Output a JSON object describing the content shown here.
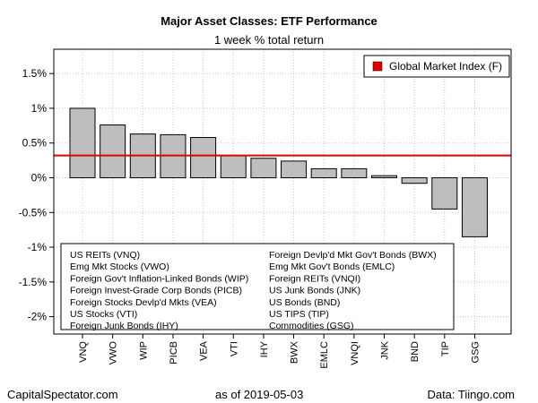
{
  "chart_data": {
    "type": "bar",
    "title": "Major Asset Classes: ETF Performance",
    "subtitle": "1 week % total return",
    "categories": [
      "VNQ",
      "VWO",
      "WIP",
      "PICB",
      "VEA",
      "VTI",
      "IHY",
      "BWX",
      "EMLC",
      "VNQI",
      "JNK",
      "BND",
      "TIP",
      "GSG"
    ],
    "values": [
      1.0,
      0.76,
      0.63,
      0.62,
      0.58,
      0.32,
      0.28,
      0.24,
      0.13,
      0.13,
      0.03,
      -0.08,
      -0.45,
      -0.85
    ],
    "ylim": [
      -2.25,
      1.85
    ],
    "yticks": [
      -2,
      -1.5,
      -1,
      -0.5,
      0,
      0.5,
      1,
      1.5
    ],
    "ytick_labels": [
      "-2%",
      "-1.5%",
      "-1%",
      "-0.5%",
      "0%",
      "0.5%",
      "1%",
      "1.5%"
    ],
    "reference_line": {
      "name": "Global Market Index (F)",
      "value": 0.32,
      "color": "#e00000"
    },
    "bar_color": "#bebebe",
    "grid": true,
    "legend_position": "top-right",
    "key_entries": [
      "US REITs (VNQ)",
      "Emg Mkt Stocks (VWO)",
      "Foreign Gov't Inflation-Linked Bonds (WIP)",
      "Foreign Invest-Grade Corp Bonds (PICB)",
      "Foreign Stocks Devlp'd Mkts (VEA)",
      "US Stocks (VTI)",
      "Foreign Junk Bonds (IHY)",
      "Foreign Devlp'd Mkt Gov't Bonds (BWX)",
      "Emg Mkt Gov't Bonds (EMLC)",
      "Foreign REITs (VNQI)",
      "US Junk Bonds (JNK)",
      "US Bonds (BND)",
      "US TIPS (TIP)",
      "Commodities (GSG)"
    ]
  },
  "footer": {
    "source_left": "CapitalSpectator.com",
    "date_text": "as of   2019-05-03",
    "data_credit": "Data: Tiingo.com"
  }
}
